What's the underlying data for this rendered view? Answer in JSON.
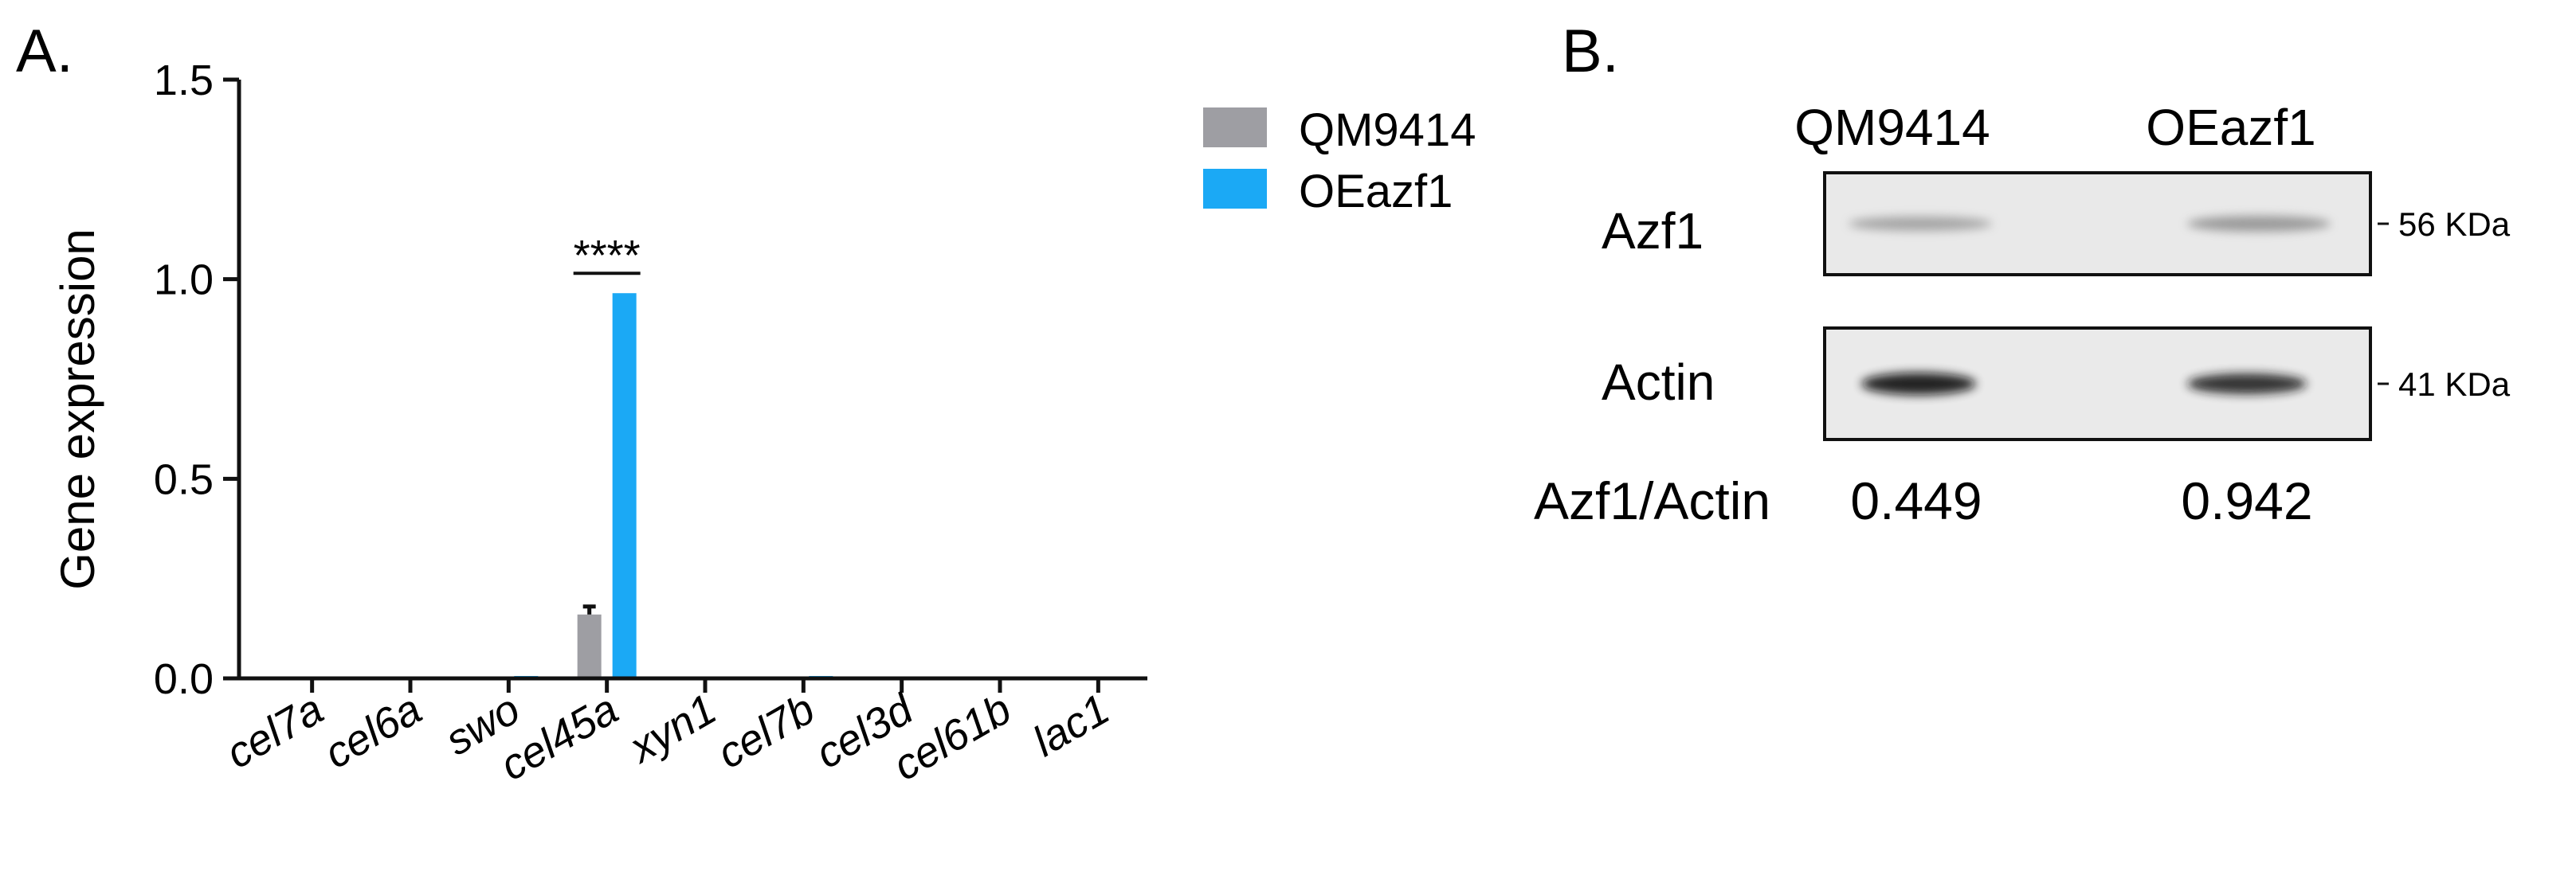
{
  "panels": {
    "a": "A.",
    "b": "B."
  },
  "colors": {
    "qm9414": "#9e9ea3",
    "oeazf1": "#1ba9f5",
    "axis": "#111111"
  },
  "chart_data": {
    "type": "bar",
    "title": "",
    "xlabel": "",
    "ylabel": "Gene expression",
    "ylim": [
      0,
      1.5
    ],
    "yticks": [
      "0.0",
      "0.5",
      "1.0",
      "1.5"
    ],
    "categories": [
      "cel7a",
      "cel6a",
      "swo",
      "cel45a",
      "xyn1",
      "cel7b",
      "cel3d",
      "cel61b",
      "lac1"
    ],
    "series": [
      {
        "name": "QM9414",
        "values": [
          0,
          0,
          0,
          0.16,
          0,
          0,
          0,
          0,
          0
        ],
        "errors": [
          0,
          0,
          0,
          0.02,
          0,
          0,
          0,
          0,
          0
        ]
      },
      {
        "name": "OEazf1",
        "values": [
          0,
          0,
          0.003,
          0.965,
          0,
          0.003,
          0,
          0,
          0
        ],
        "errors": [
          0,
          0,
          0,
          0,
          0,
          0,
          0,
          0,
          0
        ]
      }
    ],
    "annotations": [
      {
        "category": "cel45a",
        "text": "****"
      }
    ],
    "legend_position": "top-right",
    "grid": false
  },
  "blot": {
    "columns": [
      "QM9414",
      "OEazf1"
    ],
    "rows": [
      {
        "label": "Azf1",
        "size": "56 KDa",
        "intensity": [
          0.2,
          0.22
        ]
      },
      {
        "label": "Actin",
        "size": "41 KDa",
        "intensity": [
          0.95,
          0.9
        ]
      }
    ],
    "ratio_label": "Azf1/Actin",
    "ratios": [
      "0.449",
      "0.942"
    ]
  }
}
